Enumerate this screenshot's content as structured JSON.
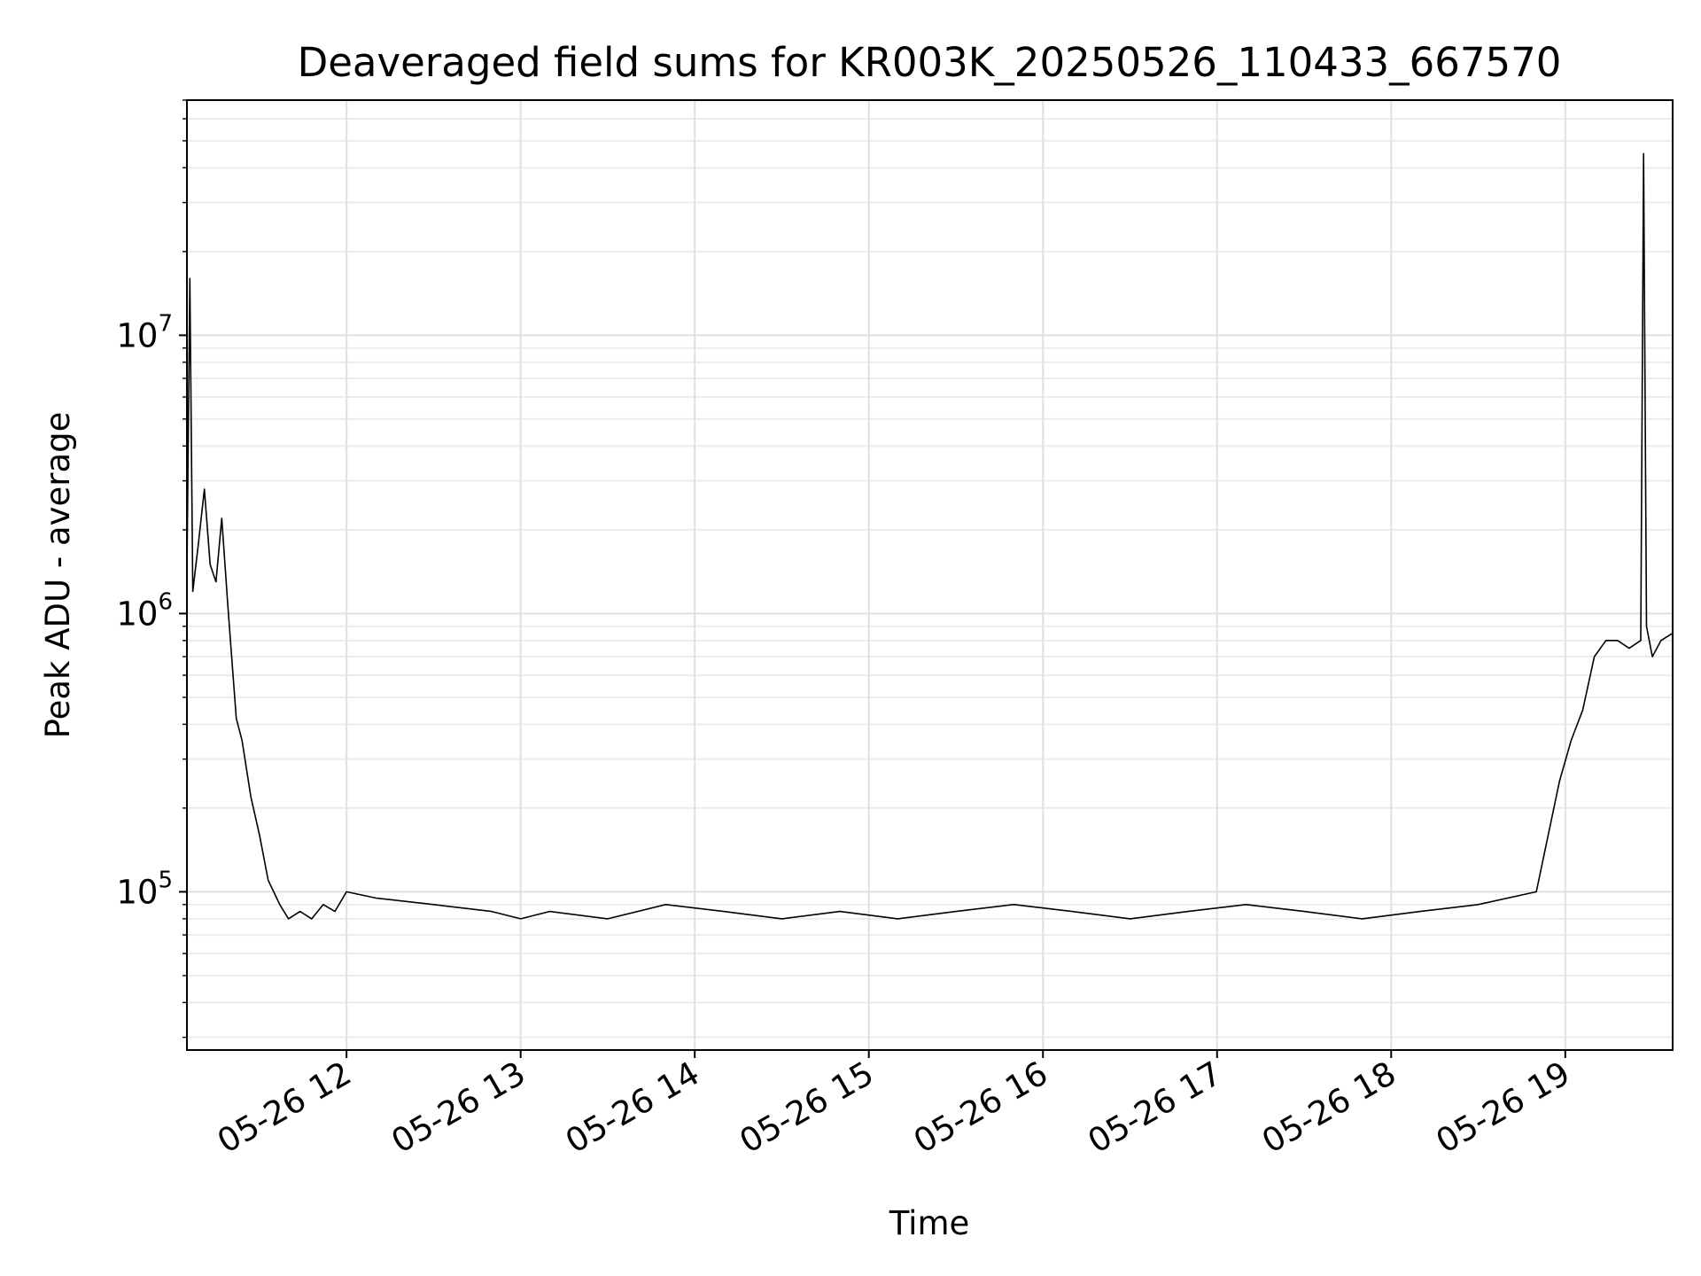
{
  "chart_data": {
    "type": "line",
    "title": "Deaveraged field sums for KR003K_20250526_110433_667570",
    "xlabel": "Time",
    "ylabel": "Peak ADU - average",
    "yscale": "log",
    "grid": true,
    "line_color": "#000000",
    "xlim": [
      "05-26 11:05",
      "05-26 19:37"
    ],
    "ylim": [
      27000,
      70000000
    ],
    "x_ticks": [
      "05-26 12",
      "05-26 13",
      "05-26 14",
      "05-26 15",
      "05-26 16",
      "05-26 17",
      "05-26 18",
      "05-26 19"
    ],
    "y_ticks": [
      {
        "value": 100000,
        "base": "10",
        "exp": "5"
      },
      {
        "value": 1000000,
        "base": "10",
        "exp": "6"
      },
      {
        "value": 10000000,
        "base": "10",
        "exp": "7"
      }
    ],
    "series": [
      {
        "x": [
          "05-26 11:05",
          "05-26 11:06",
          "05-26 11:07",
          "05-26 11:09",
          "05-26 11:11",
          "05-26 11:13",
          "05-26 11:15",
          "05-26 11:17",
          "05-26 11:19",
          "05-26 11:20",
          "05-26 11:22",
          "05-26 11:24",
          "05-26 11:27",
          "05-26 11:30",
          "05-26 11:33",
          "05-26 11:37",
          "05-26 11:40",
          "05-26 11:44",
          "05-26 11:48",
          "05-26 11:52",
          "05-26 11:56",
          "05-26 12:00",
          "05-26 12:10",
          "05-26 12:30",
          "05-26 12:50",
          "05-26 13:00",
          "05-26 13:10",
          "05-26 13:30",
          "05-26 13:50",
          "05-26 14:10",
          "05-26 14:30",
          "05-26 14:50",
          "05-26 15:10",
          "05-26 15:30",
          "05-26 15:50",
          "05-26 16:10",
          "05-26 16:30",
          "05-26 16:50",
          "05-26 17:10",
          "05-26 17:30",
          "05-26 17:50",
          "05-26 18:10",
          "05-26 18:30",
          "05-26 18:50",
          "05-26 18:58",
          "05-26 19:02",
          "05-26 19:06",
          "05-26 19:10",
          "05-26 19:14",
          "05-26 19:18",
          "05-26 19:22",
          "05-26 19:26",
          "05-26 19:27",
          "05-26 19:28",
          "05-26 19:30",
          "05-26 19:33",
          "05-26 19:37"
        ],
        "values": [
          1400000,
          16000000,
          1200000,
          1800000,
          2800000,
          1500000,
          1300000,
          2200000,
          1100000,
          800000,
          420000,
          350000,
          220000,
          160000,
          110000,
          90000,
          80000,
          85000,
          80000,
          90000,
          85000,
          100000,
          95000,
          90000,
          85000,
          80000,
          85000,
          80000,
          90000,
          85000,
          80000,
          85000,
          80000,
          85000,
          90000,
          85000,
          80000,
          85000,
          90000,
          85000,
          80000,
          85000,
          90000,
          100000,
          250000,
          350000,
          450000,
          700000,
          800000,
          800000,
          750000,
          800000,
          45000000,
          900000,
          700000,
          800000,
          850000
        ]
      }
    ]
  }
}
